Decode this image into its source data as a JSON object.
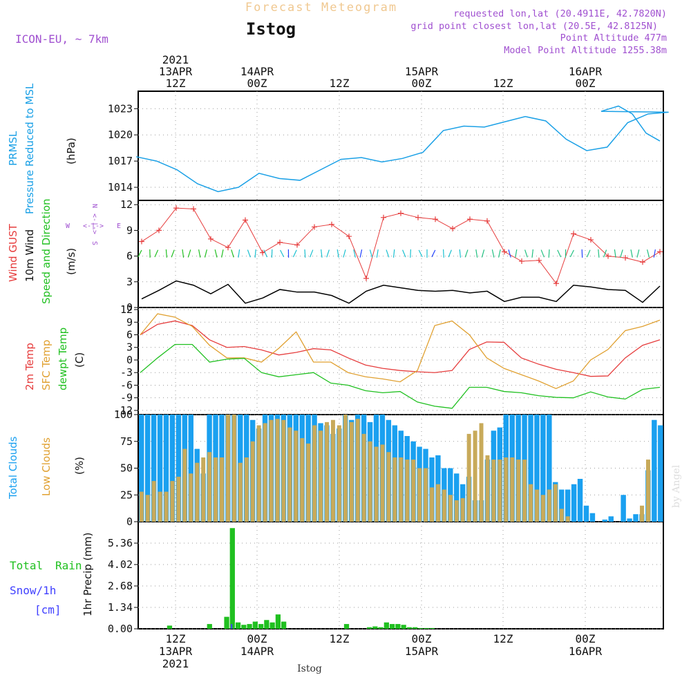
{
  "header": {
    "title": "Forecast Meteogram",
    "station": "Istog",
    "model": "ICON-EU, ~ 7km",
    "requested": "requested lon,lat (20.4911E, 42.7820N)",
    "gridpoint": "grid point closest lon,lat (20.5E, 42.8125N)",
    "altitude": "Point Altitude 477m",
    "model_altitude": "Model Point Altitude 1255.38m",
    "watermark": "by Angel",
    "footer_station": "Istog"
  },
  "time_axis": {
    "top_labels": [
      {
        "year": "2021",
        "date": "13APR",
        "hour": "12Z"
      },
      {
        "year": "",
        "date": "14APR",
        "hour": "00Z"
      },
      {
        "year": "",
        "date": "",
        "hour": "12Z"
      },
      {
        "year": "",
        "date": "15APR",
        "hour": "00Z"
      },
      {
        "year": "",
        "date": "",
        "hour": "12Z"
      },
      {
        "year": "",
        "date": "16APR",
        "hour": "00Z"
      }
    ],
    "bottom_labels": [
      {
        "hour": "12Z",
        "date": "13APR",
        "year": "2021"
      },
      {
        "hour": "00Z",
        "date": "14APR",
        "year": ""
      },
      {
        "hour": "12Z",
        "date": "",
        "year": ""
      },
      {
        "hour": "00Z",
        "date": "15APR",
        "year": ""
      },
      {
        "hour": "12Z",
        "date": "",
        "year": ""
      },
      {
        "hour": "00Z",
        "date": "16APR",
        "year": ""
      }
    ]
  },
  "panels": {
    "pressure": {
      "label1": "PRMSL",
      "label2": "Pressure Reduced to MSL",
      "unit": "(hPa)"
    },
    "wind": {
      "gust": "Wind GUST",
      "wind10": "10m Wind",
      "speeddir": "Speed and Direction",
      "unit": "(m/s)",
      "compass_n": "N",
      "compass_s": "S",
      "compass_w": "W",
      "compass_e": "E",
      "compass_h": "<-|->",
      "compass_v1": "<-|->"
    },
    "temp": {
      "t2m": "2m Temp",
      "sfc": "SFC Temp",
      "dewpt": "dewpt Temp",
      "unit": "(C)"
    },
    "clouds": {
      "total": "Total Clouds",
      "low": "Low Clouds",
      "unit": "(%)"
    },
    "precip": {
      "rain_a": "Total",
      "rain_b": "Rain",
      "snow": "Snow/1h",
      "snow_unit": "[cm]",
      "axis": "1hr Precip (mm)"
    }
  },
  "colors": {
    "pressure": "#1aa0e6",
    "gust": "#e63c3c",
    "wind": "#000000",
    "t2m": "#e63c3c",
    "sfc": "#e0a030",
    "dewpt": "#20c020",
    "total_cloud": "#1aa0f0",
    "low_cloud": "#c8aa5a",
    "rain": "#20c020",
    "snow": "#4040ff",
    "header_title": "#f0c890",
    "info": "#a050d0"
  },
  "chart_data": [
    {
      "type": "line",
      "name": "pressure",
      "x_hours": [
        0,
        3,
        6,
        9,
        12,
        15,
        18,
        21,
        24,
        27,
        30,
        33,
        36,
        39,
        42,
        45,
        48,
        51,
        54,
        57,
        60,
        63,
        66,
        69,
        72,
        75,
        78
      ],
      "x_start": "2021-04-13 06Z",
      "ylim": [
        1012.5,
        1025
      ],
      "yticks": [
        1014,
        1017,
        1020,
        1023
      ],
      "values": [
        1017.5,
        1017.0,
        1016.0,
        1014.4,
        1013.5,
        1014.0,
        1015.6,
        1015.0,
        1014.8,
        1016.0,
        1017.2,
        1017.4,
        1016.9,
        1017.3,
        1018.0,
        1020.5,
        1021.0,
        1020.9,
        1021.5,
        1022.1,
        1021.6,
        1019.5,
        1018.2,
        1018.6,
        1021.4,
        1022.4,
        1022.6
      ],
      "tail": [
        1022.7,
        1023.3,
        1022.4,
        1020.2,
        1019.3
      ]
    },
    {
      "type": "line",
      "name": "wind",
      "x_hours": [
        0,
        3,
        6,
        9,
        12,
        15,
        18,
        21,
        24,
        27,
        30,
        33,
        36,
        39,
        42,
        45,
        48,
        51,
        54,
        57,
        60,
        63,
        66,
        69,
        72,
        75,
        78,
        81,
        84,
        87,
        90
      ],
      "ylim": [
        0,
        12.5
      ],
      "yticks": [
        0,
        3,
        6,
        9,
        12
      ],
      "gust": [
        7.7,
        9.0,
        11.6,
        11.5,
        8.0,
        7.0,
        10.2,
        6.4,
        7.6,
        7.3,
        9.4,
        9.7,
        8.3,
        3.4,
        10.5,
        11.0,
        10.5,
        10.3,
        9.2,
        10.3,
        10.1,
        6.5,
        5.4,
        5.5,
        2.8,
        8.6,
        7.9,
        6.0,
        5.8,
        5.3,
        6.5
      ],
      "wind10": [
        1.0,
        2.0,
        3.1,
        2.6,
        1.6,
        2.7,
        0.5,
        1.1,
        2.1,
        1.8,
        1.8,
        1.4,
        0.5,
        1.9,
        2.6,
        2.3,
        2.0,
        1.9,
        2.0,
        1.7,
        1.9,
        0.7,
        1.2,
        1.2,
        0.7,
        2.6,
        2.4,
        2.1,
        2.0,
        0.6,
        2.5
      ]
    },
    {
      "type": "line",
      "name": "temperature",
      "x_hours": [
        0,
        3,
        6,
        9,
        12,
        15,
        18,
        21,
        24,
        27,
        30,
        33,
        36,
        39,
        42,
        45,
        48,
        51,
        54,
        57,
        60,
        63,
        66,
        69,
        72,
        75,
        78,
        81,
        84,
        87,
        90
      ],
      "ylim": [
        -13,
        12.5
      ],
      "yticks": [
        -12,
        -9,
        -6,
        -3,
        0,
        3,
        6,
        9,
        12
      ],
      "t2m": [
        6.0,
        8.5,
        9.3,
        8.2,
        4.8,
        3.0,
        3.2,
        2.4,
        1.2,
        1.8,
        2.7,
        2.4,
        0.5,
        -1.2,
        -2.0,
        -2.5,
        -2.8,
        -3.0,
        -2.5,
        2.5,
        4.3,
        4.2,
        0.5,
        -1.0,
        -2.2,
        -3.0,
        -3.9,
        -3.8,
        0.5,
        3.5,
        4.8
      ],
      "sfc": [
        6.0,
        11.0,
        10.2,
        8.0,
        3.5,
        0.5,
        0.5,
        -0.5,
        2.8,
        6.7,
        -0.5,
        -0.5,
        -3.0,
        -4.0,
        -4.5,
        -5.2,
        -2.5,
        8.2,
        9.3,
        6.0,
        0.5,
        -2.0,
        -3.5,
        -5.0,
        -6.8,
        -5.0,
        0.0,
        2.5,
        7.0,
        8.0,
        9.5
      ],
      "dewpt": [
        -3.0,
        0.5,
        3.7,
        3.7,
        -0.5,
        0.2,
        0.4,
        -3.0,
        -4.0,
        -3.5,
        -3.0,
        -5.5,
        -6.0,
        -7.3,
        -7.8,
        -7.5,
        -10.0,
        -11.0,
        -11.5,
        -6.5,
        -6.5,
        -7.5,
        -7.8,
        -8.5,
        -8.9,
        -9.0,
        -7.6,
        -8.8,
        -9.3,
        -7.0,
        -6.5
      ]
    },
    {
      "type": "bar",
      "name": "clouds",
      "ylim": [
        0,
        100
      ],
      "yticks": [
        0,
        25,
        50,
        75,
        100
      ],
      "total": [
        100,
        100,
        100,
        100,
        100,
        100,
        100,
        100,
        100,
        68,
        45,
        100,
        100,
        100,
        100,
        100,
        100,
        100,
        95,
        87,
        100,
        100,
        100,
        100,
        100,
        100,
        100,
        100,
        100,
        92,
        90,
        82,
        87,
        100,
        95,
        100,
        100,
        93,
        100,
        100,
        95,
        90,
        85,
        80,
        75,
        70,
        68,
        60,
        62,
        50,
        50,
        45,
        35,
        42,
        20,
        20,
        58,
        85,
        88,
        100,
        100,
        100,
        100,
        100,
        100,
        100,
        100,
        37,
        30,
        30,
        35,
        40,
        15,
        8,
        0,
        2,
        5,
        0,
        25,
        3,
        7,
        7,
        48,
        95,
        90
      ],
      "low": [
        28,
        25,
        38,
        28,
        28,
        38,
        42,
        68,
        45,
        55,
        60,
        65,
        60,
        60,
        100,
        100,
        55,
        60,
        75,
        90,
        92,
        95,
        96,
        95,
        88,
        85,
        78,
        73,
        90,
        85,
        93,
        95,
        90,
        100,
        93,
        96,
        82,
        75,
        70,
        72,
        65,
        60,
        60,
        58,
        58,
        50,
        50,
        32,
        35,
        30,
        25,
        20,
        22,
        82,
        85,
        92,
        62,
        58,
        58,
        60,
        60,
        58,
        58,
        35,
        30,
        25,
        30,
        35,
        12,
        5,
        0,
        0,
        0,
        0,
        0,
        0,
        0,
        0,
        0,
        0,
        0,
        15,
        58,
        0,
        0
      ]
    },
    {
      "type": "bar",
      "name": "precip",
      "ylim": [
        0,
        6.7
      ],
      "yticks": [
        0,
        1.34,
        2.68,
        4.02,
        5.36
      ],
      "rain": [
        0,
        0,
        0,
        0,
        0,
        0.2,
        0,
        0,
        0,
        0,
        0,
        0,
        0.3,
        0,
        0,
        0.75,
        6.3,
        0.4,
        0.25,
        0.3,
        0.45,
        0.3,
        0.55,
        0.4,
        0.9,
        0.45,
        0,
        0,
        0,
        0,
        0,
        0,
        0,
        0,
        0,
        0,
        0.3,
        0,
        0,
        0,
        0.1,
        0.15,
        0.1,
        0.4,
        0.3,
        0.3,
        0.25,
        0.1,
        0.1,
        0.05,
        0.05,
        0.05,
        0,
        0,
        0,
        0,
        0,
        0,
        0,
        0,
        0,
        0,
        0,
        0,
        0,
        0,
        0,
        0,
        0,
        0,
        0,
        0,
        0,
        0,
        0,
        0,
        0,
        0,
        0,
        0,
        0,
        0,
        0,
        0,
        0,
        0,
        0,
        0,
        0,
        0,
        0,
        0
      ],
      "snow": [
        0,
        0,
        0,
        0,
        0,
        0,
        0,
        0,
        0,
        0,
        0,
        0,
        0,
        0,
        0,
        0,
        0.3,
        0,
        0,
        0,
        0,
        0,
        0,
        0,
        0,
        0,
        0,
        0,
        0,
        0,
        0,
        0,
        0,
        0,
        0,
        0,
        0,
        0,
        0,
        0,
        0,
        0,
        0,
        0,
        0,
        0,
        0,
        0,
        0,
        0,
        0,
        0,
        0,
        0,
        0,
        0,
        0,
        0,
        0,
        0,
        0,
        0,
        0,
        0,
        0,
        0,
        0,
        0,
        0,
        0,
        0,
        0,
        0,
        0,
        0,
        0,
        0,
        0,
        0,
        0,
        0,
        0,
        0,
        0,
        0,
        0,
        0,
        0,
        0,
        0,
        0,
        0
      ]
    }
  ]
}
